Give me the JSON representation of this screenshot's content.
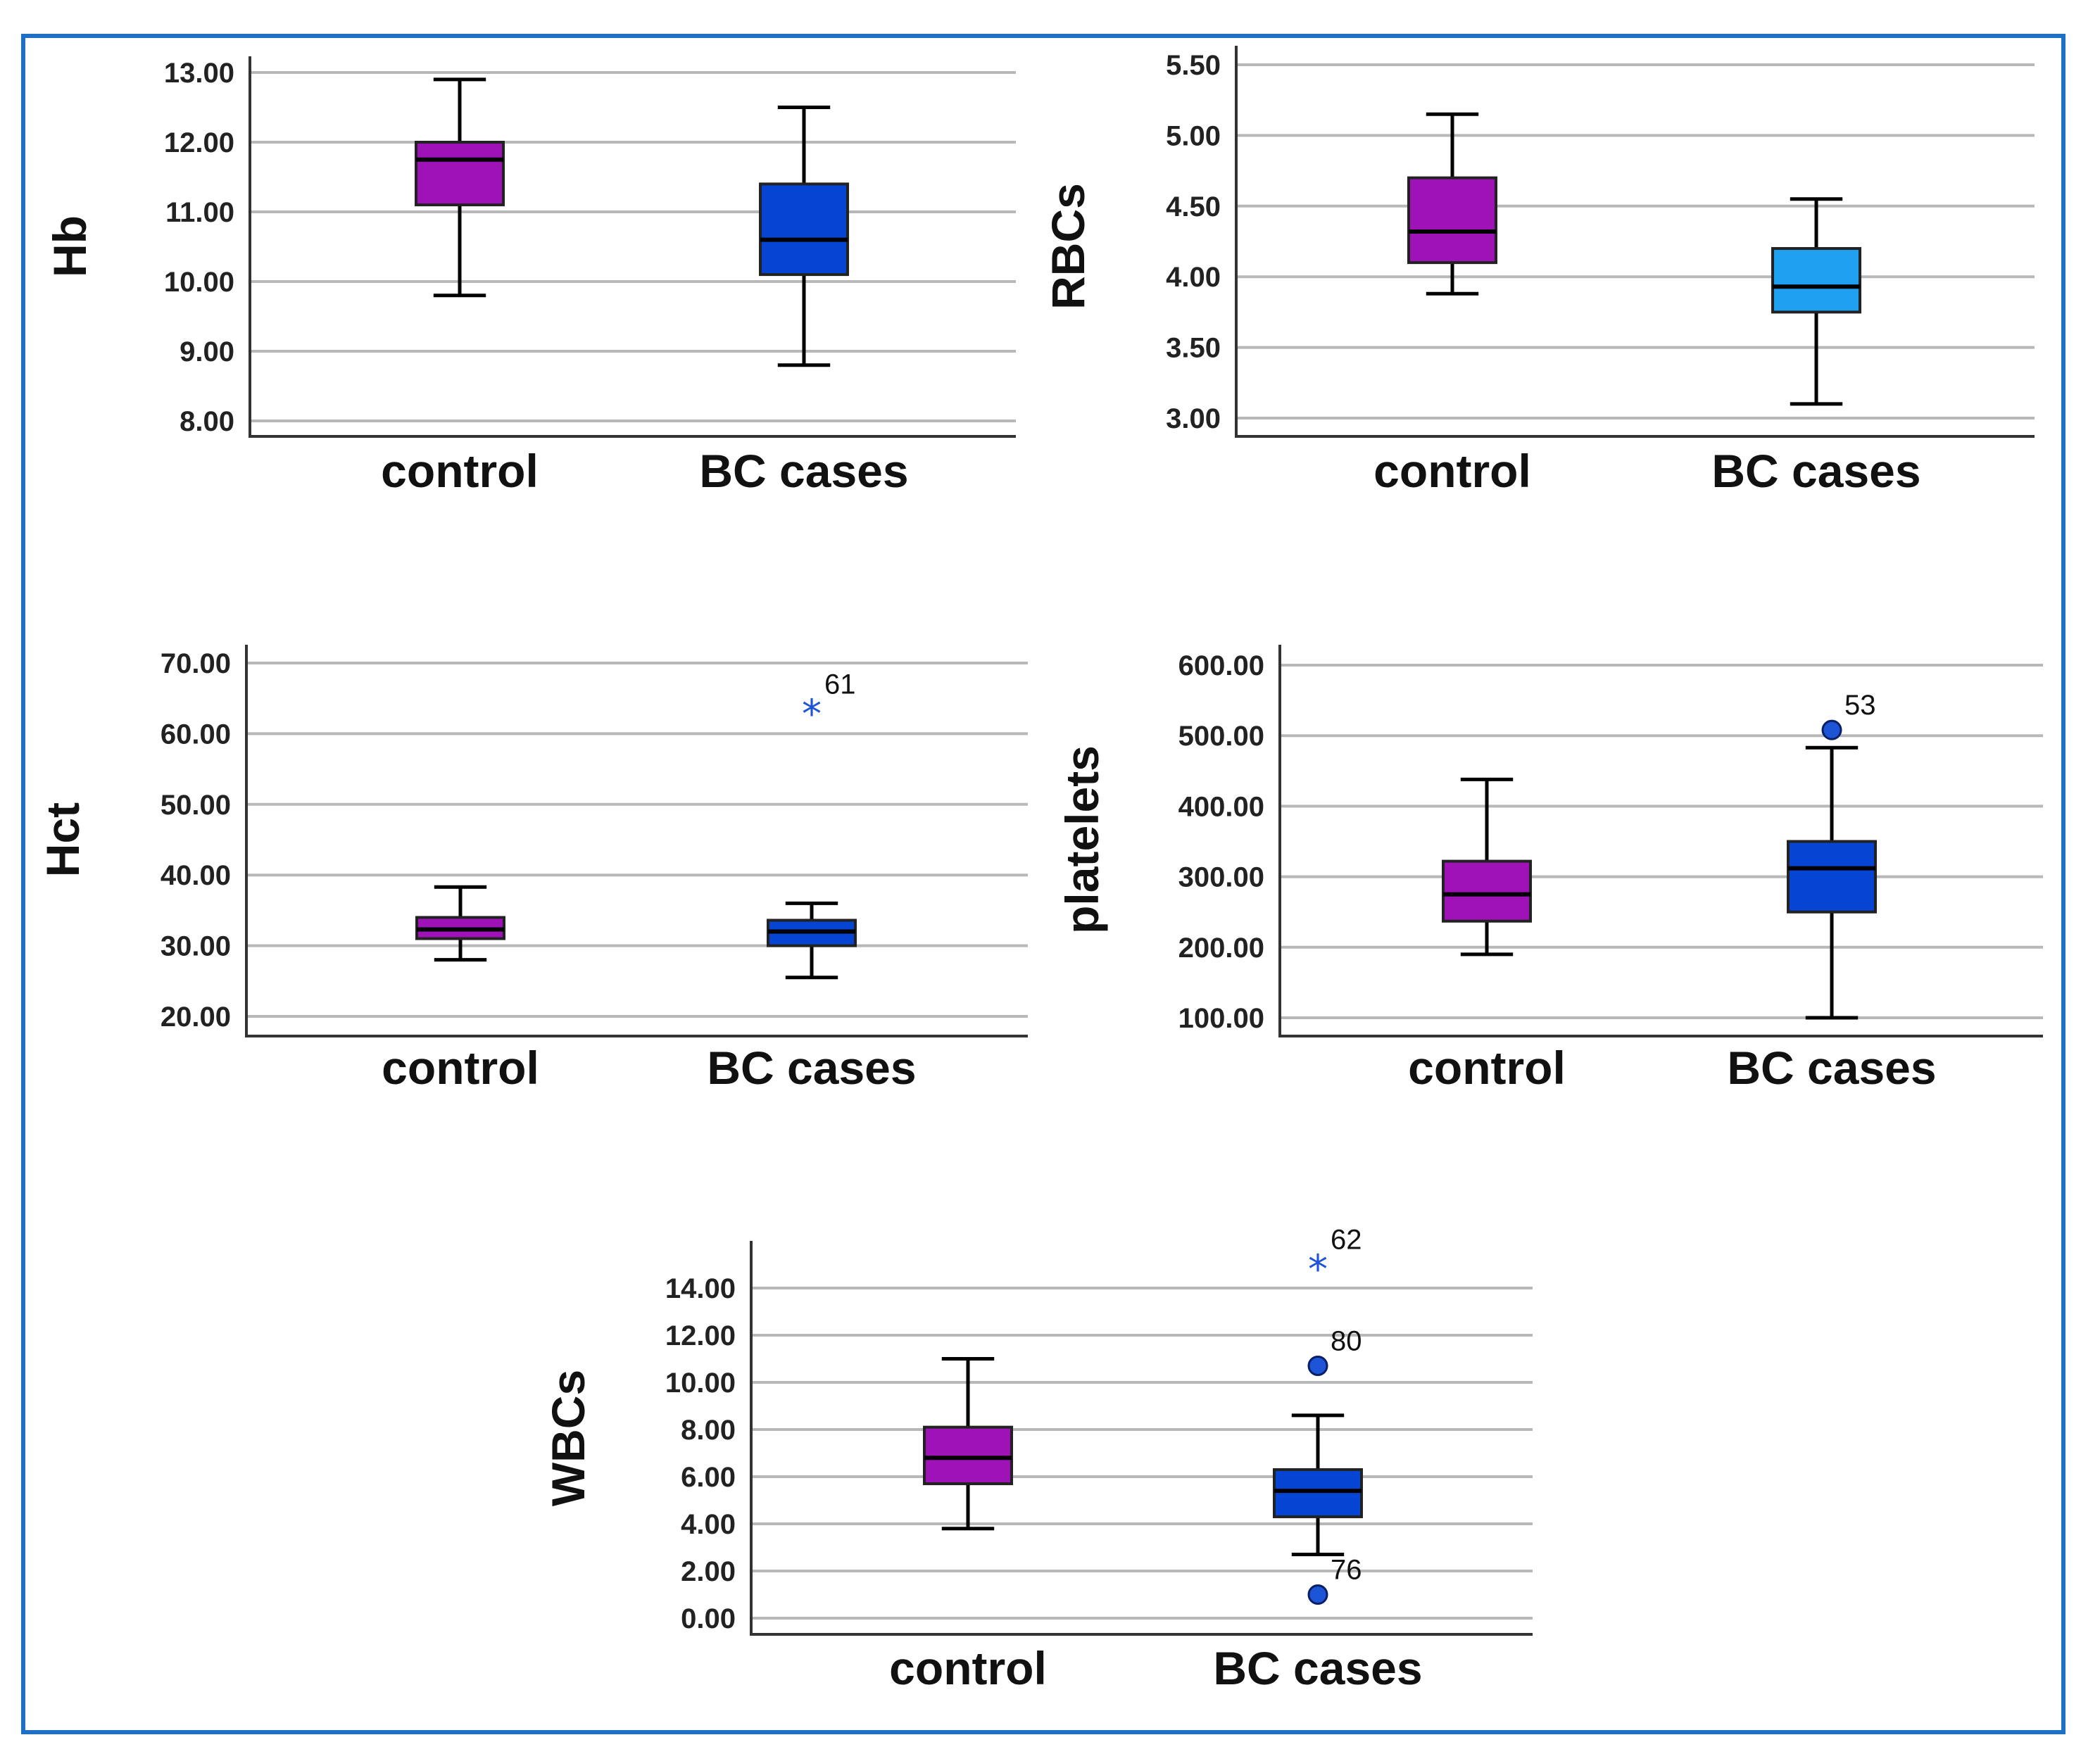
{
  "colors": {
    "frame": "#1f6fc4",
    "control": "#9e12b8",
    "cases": "#0645d4",
    "cases_light": "#1fa0f0",
    "outlier": "#1e54d6"
  },
  "chart_data": [
    {
      "type": "boxplot",
      "ylabel": "Hb",
      "ylim": [
        8.0,
        13.0
      ],
      "yticks": [
        "8.00",
        "9.00",
        "10.00",
        "11.00",
        "12.00",
        "13.00"
      ],
      "categories": [
        "control",
        "BC cases"
      ],
      "boxes": [
        {
          "category": "control",
          "min": 9.8,
          "q1": 11.1,
          "median": 11.75,
          "q3": 12.0,
          "max": 12.9,
          "color": "#9e12b8"
        },
        {
          "category": "BC cases",
          "min": 8.8,
          "q1": 10.1,
          "median": 10.6,
          "q3": 11.4,
          "max": 12.5,
          "color": "#0645d4"
        }
      ],
      "outliers": []
    },
    {
      "type": "boxplot",
      "ylabel": "RBCs",
      "ylim": [
        3.0,
        5.5
      ],
      "yticks": [
        "3.00",
        "3.50",
        "4.00",
        "4.50",
        "5.00",
        "5.50"
      ],
      "categories": [
        "control",
        "BC cases"
      ],
      "boxes": [
        {
          "category": "control",
          "min": 3.88,
          "q1": 4.1,
          "median": 4.32,
          "q3": 4.7,
          "max": 5.15,
          "color": "#9e12b8"
        },
        {
          "category": "BC cases",
          "min": 3.1,
          "q1": 3.75,
          "median": 3.93,
          "q3": 4.2,
          "max": 4.55,
          "color": "#1fa0f0"
        }
      ],
      "outliers": []
    },
    {
      "type": "boxplot",
      "ylabel": "Hct",
      "ylim": [
        20.0,
        70.0
      ],
      "yticks": [
        "20.00",
        "30.00",
        "40.00",
        "50.00",
        "60.00",
        "70.00"
      ],
      "categories": [
        "control",
        "BC cases"
      ],
      "boxes": [
        {
          "category": "control",
          "min": 28.0,
          "q1": 31.0,
          "median": 32.3,
          "q3": 34.0,
          "max": 38.3,
          "color": "#9e12b8"
        },
        {
          "category": "BC cases",
          "min": 25.5,
          "q1": 30.0,
          "median": 32.0,
          "q3": 33.6,
          "max": 36.0,
          "color": "#0645d4"
        }
      ],
      "outliers": [
        {
          "category": "BC cases",
          "value": 63.5,
          "label": "61",
          "marker": "star"
        }
      ]
    },
    {
      "type": "boxplot",
      "ylabel": "platelets",
      "ylim": [
        100.0,
        600.0
      ],
      "yticks": [
        "100.00",
        "200.00",
        "300.00",
        "400.00",
        "500.00",
        "600.00"
      ],
      "categories": [
        "control",
        "BC cases"
      ],
      "boxes": [
        {
          "category": "control",
          "min": 190,
          "q1": 237,
          "median": 275,
          "q3": 322,
          "max": 438,
          "color": "#9e12b8"
        },
        {
          "category": "BC cases",
          "min": 100,
          "q1": 250,
          "median": 312,
          "q3": 350,
          "max": 483,
          "color": "#0645d4"
        }
      ],
      "outliers": [
        {
          "category": "BC cases",
          "value": 508,
          "label": "53",
          "marker": "circle"
        }
      ]
    },
    {
      "type": "boxplot",
      "ylabel": "WBCs",
      "ylim": [
        0.0,
        14.0
      ],
      "yticks": [
        "0.00",
        "2.00",
        "4.00",
        "6.00",
        "8.00",
        "10.00",
        "12.00",
        "14.00"
      ],
      "categories": [
        "control",
        "BC cases"
      ],
      "boxes": [
        {
          "category": "control",
          "min": 3.8,
          "q1": 5.7,
          "median": 6.8,
          "q3": 8.1,
          "max": 11.0,
          "color": "#9e12b8"
        },
        {
          "category": "BC cases",
          "min": 2.7,
          "q1": 4.3,
          "median": 5.4,
          "q3": 6.3,
          "max": 8.6,
          "color": "#0645d4"
        }
      ],
      "outliers": [
        {
          "category": "BC cases",
          "value": 15.0,
          "label": "62",
          "marker": "star"
        },
        {
          "category": "BC cases",
          "value": 10.7,
          "label": "80",
          "marker": "circle"
        },
        {
          "category": "BC cases",
          "value": 1.0,
          "label": "76",
          "marker": "circle"
        }
      ]
    }
  ]
}
